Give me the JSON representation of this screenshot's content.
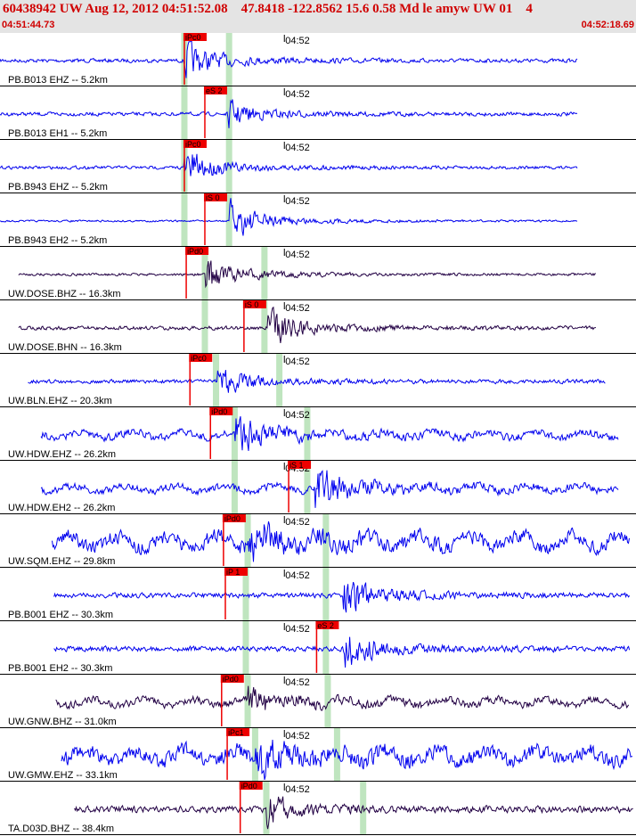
{
  "header": {
    "title": "60438942 UW Aug 12, 2012 04:51:52.08    47.8418 -122.8562 15.6 0.58 Md le amyw UW 01    4",
    "start_time": "04:51:44.73",
    "end_time": "04:52:18.69"
  },
  "chart_data": {
    "type": "line",
    "title": "60438942 UW Aug 12, 2012 04:51:52.08    47.8418 -122.8562 15.6 0.58 Md le amyw UW 01    4",
    "x_range": [
      "04:51:44.73",
      "04:52:18.69"
    ],
    "x_range_seconds": [
      0,
      33.96
    ],
    "minute_mark": {
      "label": "04:52",
      "t": 15.27
    },
    "origin_time": "04:51:52.08",
    "colors": {
      "trace": "#0000ee",
      "trace_alt": "#220044",
      "pick": "#ee0000",
      "pick_window": "#bfe5bf"
    },
    "traces": [
      {
        "label": "PB.B013 EHZ -- 5.2km",
        "color": "#0000ee",
        "amp": 0.25,
        "noise": 0.03,
        "lead": 0.0,
        "trail": 31.0,
        "onset": 9.9,
        "pick": {
          "label": "iPc0",
          "t": 9.9
        },
        "window": 9.9,
        "window2": 12.3
      },
      {
        "label": "PB.B013 EH1 -- 5.2km",
        "color": "#0000ee",
        "amp": 0.18,
        "noise": 0.03,
        "lead": 0.0,
        "trail": 31.0,
        "onset": 12.2,
        "pick": {
          "label": "eS 2",
          "t": 11.0
        },
        "window": 9.9,
        "window2": 12.3
      },
      {
        "label": "PB.B943 EHZ -- 5.2km",
        "color": "#0000ee",
        "amp": 0.25,
        "noise": 0.025,
        "lead": 0.0,
        "trail": 31.0,
        "onset": 9.9,
        "pick": {
          "label": "iPc0",
          "t": 9.9
        },
        "window": 9.9,
        "window2": 12.3
      },
      {
        "label": "PB.B943 EH2 -- 5.2km",
        "color": "#0000ee",
        "amp": 0.28,
        "noise": 0.015,
        "lead": 0.0,
        "trail": 31.0,
        "onset": 12.3,
        "pick": {
          "label": "iS 0",
          "t": 11.0
        },
        "window": 9.9,
        "window2": 12.3
      },
      {
        "label": "UW.DOSE.BHZ -- 16.3km",
        "color": "#220044",
        "amp": 0.25,
        "noise": 0.02,
        "lead": 1.0,
        "trail": 32.0,
        "onset": 11.0,
        "pick": {
          "label": "iPd0",
          "t": 10.0
        },
        "window": 11.0,
        "window2": 14.2
      },
      {
        "label": "UW.DOSE.BHN -- 16.3km",
        "color": "#220044",
        "amp": 0.28,
        "noise": 0.03,
        "lead": 1.0,
        "trail": 32.0,
        "onset": 14.3,
        "pick": {
          "label": "iS 0",
          "t": 13.1
        },
        "window": 11.0,
        "window2": 14.2
      },
      {
        "label": "UW.BLN.EHZ -- 20.3km",
        "color": "#0000ee",
        "amp": 0.22,
        "noise": 0.03,
        "lead": 1.5,
        "trail": 32.5,
        "onset": 11.6,
        "pick": {
          "label": "iPc0",
          "t": 10.2
        },
        "window": 11.6,
        "window2": 15.0
      },
      {
        "label": "UW.HDW.EHZ -- 26.2km",
        "color": "#0000ee",
        "amp": 0.28,
        "noise": 0.06,
        "lead": 2.2,
        "trail": 33.2,
        "onset": 12.6,
        "pick": {
          "label": "iPd0",
          "t": 11.3
        },
        "window": 12.6,
        "window2": 16.5
      },
      {
        "label": "UW.HDW.EH2 -- 26.2km",
        "color": "#0000ee",
        "amp": 0.28,
        "noise": 0.06,
        "lead": 2.2,
        "trail": 33.2,
        "onset": 16.9,
        "pick": {
          "label": "iS 1",
          "t": 15.5
        },
        "window": 12.6,
        "window2": 16.5
      },
      {
        "label": "UW.SQM.EHZ -- 29.8km",
        "color": "#0000ee",
        "amp": 0.25,
        "noise": 0.12,
        "lead": 2.8,
        "trail": 33.8,
        "onset": 13.3,
        "pick": {
          "label": "iPd0",
          "t": 12.0
        },
        "window": 13.3,
        "window2": 17.5
      },
      {
        "label": "PB.B001 EHZ -- 30.3km",
        "color": "#0000ee",
        "amp": 0.28,
        "noise": 0.04,
        "lead": 2.9,
        "trail": 33.8,
        "onset": 18.4,
        "pick": {
          "label": "iP 1",
          "t": 12.1
        },
        "window": 13.2,
        "window2": 17.5
      },
      {
        "label": "PB.B001 EH2 -- 30.3km",
        "color": "#0000ee",
        "amp": 0.28,
        "noise": 0.04,
        "lead": 2.9,
        "trail": 33.8,
        "onset": 18.4,
        "pick": {
          "label": "eS 2",
          "t": 17.0
        },
        "window": 13.2,
        "window2": 17.5
      },
      {
        "label": "UW.GNW.BHZ -- 31.0km",
        "color": "#220044",
        "amp": 0.2,
        "noise": 0.06,
        "lead": 3.0,
        "trail": 33.8,
        "onset": 13.3,
        "pick": {
          "label": "iPd0",
          "t": 11.9
        },
        "window": 13.3,
        "window2": 17.6
      },
      {
        "label": "UW.GMW.EHZ -- 33.1km",
        "color": "#0000ee",
        "amp": 0.25,
        "noise": 0.12,
        "lead": 3.3,
        "trail": 34.0,
        "onset": 13.7,
        "pick": {
          "label": "iPc1",
          "t": 12.2
        },
        "window": 13.7,
        "window2": 18.1
      },
      {
        "label": "TA.D03D.BHZ -- 38.4km",
        "color": "#220044",
        "amp": 0.2,
        "noise": 0.05,
        "lead": 4.0,
        "trail": 34.0,
        "onset": 14.3,
        "pick": {
          "label": "iPd0",
          "t": 12.9
        },
        "window": 14.3,
        "window2": 19.5
      }
    ]
  }
}
